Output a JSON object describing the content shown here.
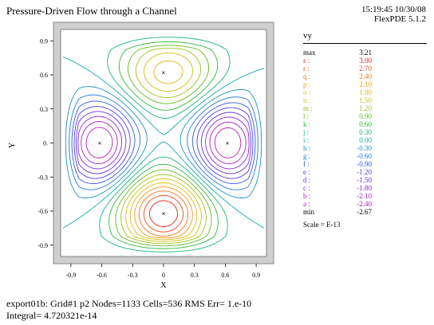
{
  "header": {
    "title": "Pressure-Driven Flow through a Channel",
    "timestamp": "15:19:45 10/30/08",
    "software": "FlexPDE 5.1.2"
  },
  "footer": {
    "line1": "export01b:  Grid#1  p2  Nodes=1133 Cells=536 RMS Err= 1.e-10",
    "line2": "Integral=  4.720321e-14"
  },
  "chart_data": {
    "type": "contour",
    "variable": "vy",
    "xlabel": "X",
    "ylabel": "Y",
    "xlim": [
      -1.0,
      1.0
    ],
    "ylim": [
      -1.0,
      1.0
    ],
    "xticks": [
      -0.9,
      -0.6,
      -0.3,
      0,
      0.3,
      0.6,
      0.9
    ],
    "xtick_labels": [
      "-0.9",
      "-0.6",
      "-0.3",
      "0",
      "0.3",
      "0.6",
      "0.9"
    ],
    "yticks": [
      -0.9,
      -0.6,
      -0.3,
      0,
      0.3,
      0.6,
      0.9
    ],
    "ytick_labels": [
      "-0.9",
      "-0.6",
      "-0.3",
      "0.",
      "0.3",
      "0.6",
      "0.9"
    ],
    "legend": {
      "title": "vy",
      "max": {
        "label": "max",
        "value": "3.21"
      },
      "levels": [
        {
          "key": "s :",
          "value": "3.00",
          "color": "#e0201a"
        },
        {
          "key": "r :",
          "value": "2.70",
          "color": "#ee4a1c"
        },
        {
          "key": "q :",
          "value": "2.40",
          "color": "#f2731e"
        },
        {
          "key": "p :",
          "value": "2.10",
          "color": "#f09a14"
        },
        {
          "key": "o :",
          "value": "1.80",
          "color": "#e0b60c"
        },
        {
          "key": "n :",
          "value": "1.50",
          "color": "#c9c20e"
        },
        {
          "key": "m :",
          "value": "1.20",
          "color": "#9cc218"
        },
        {
          "key": "l :",
          "value": "0.90",
          "color": "#62bb22"
        },
        {
          "key": "k :",
          "value": "0.60",
          "color": "#2db83a"
        },
        {
          "key": "j :",
          "value": "0.30",
          "color": "#16b27a"
        },
        {
          "key": "i :",
          "value": "0.00",
          "color": "#12a8a8"
        },
        {
          "key": "h :",
          "value": "-0.30",
          "color": "#1a90c8"
        },
        {
          "key": "g :",
          "value": "-0.60",
          "color": "#2476dc"
        },
        {
          "key": "f :",
          "value": "-0.90",
          "color": "#3058e6"
        },
        {
          "key": "e :",
          "value": "-1.20",
          "color": "#4a3ee8"
        },
        {
          "key": "d :",
          "value": "-1.50",
          "color": "#6a30e0"
        },
        {
          "key": "c :",
          "value": "-1.80",
          "color": "#8a26d6"
        },
        {
          "key": "b :",
          "value": "-2.10",
          "color": "#a41ec8"
        },
        {
          "key": "a :",
          "value": "-2.40",
          "color": "#bb18b8"
        }
      ],
      "min": {
        "label": "min",
        "value": "-2.67"
      },
      "scale": "Scale = E-13"
    },
    "extrema": [
      {
        "kind": "max",
        "x": 0.0,
        "y": -0.62,
        "value": 3.21
      },
      {
        "kind": "min",
        "x": -0.62,
        "y": 0.0,
        "value": -2.67
      },
      {
        "kind": "min",
        "x": 0.62,
        "y": 0.0,
        "value": -2.67
      },
      {
        "kind": "max",
        "x": 0.0,
        "y": 0.62,
        "value": 1.9
      }
    ],
    "grid": false
  }
}
